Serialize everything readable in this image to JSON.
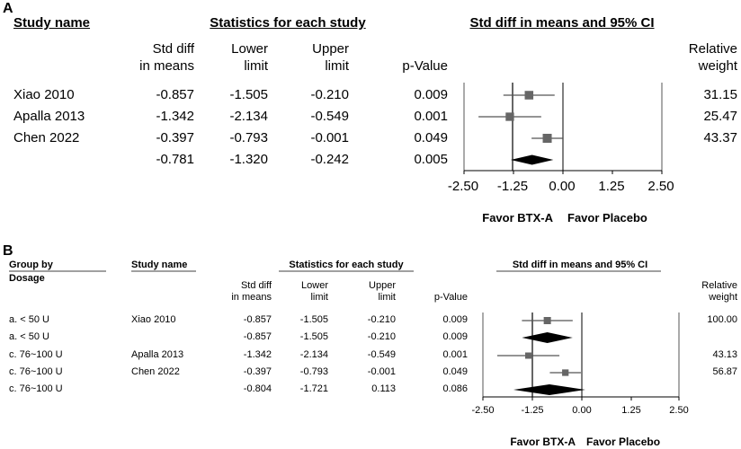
{
  "chart_data": [
    {
      "type": "forest",
      "panel": "A",
      "headers": {
        "study_name": "Study name",
        "stats_title": "Statistics for each study",
        "plot_title": "Std diff in means and 95% CI",
        "smd": [
          "Std diff",
          "in means"
        ],
        "lower": [
          "Lower",
          "limit"
        ],
        "upper": [
          "Upper",
          "limit"
        ],
        "p": "p-Value",
        "weight": [
          "Relative",
          "weight"
        ]
      },
      "rows": [
        {
          "study": "Xiao 2010",
          "smd": "-0.857",
          "lower": "-1.505",
          "upper": "-0.210",
          "p": "0.009",
          "weight": "31.15",
          "est": -0.857,
          "lo": -1.505,
          "hi": -0.21,
          "w": 31.15
        },
        {
          "study": "Apalla 2013",
          "smd": "-1.342",
          "lower": "-2.134",
          "upper": "-0.549",
          "p": "0.001",
          "weight": "25.47",
          "est": -1.342,
          "lo": -2.134,
          "hi": -0.549,
          "w": 25.47
        },
        {
          "study": "Chen 2022",
          "smd": "-0.397",
          "lower": "-0.793",
          "upper": "-0.001",
          "p": "0.049",
          "weight": "43.37",
          "est": -0.397,
          "lo": -0.793,
          "hi": -0.001,
          "w": 43.37
        }
      ],
      "summary": {
        "smd": "-0.781",
        "lower": "-1.320",
        "upper": "-0.242",
        "p": "0.005",
        "est": -0.781,
        "lo": -1.32,
        "hi": -0.242
      },
      "xlim": [
        -2.5,
        2.5
      ],
      "ticks": [
        "-2.50",
        "-1.25",
        "0.00",
        "1.25",
        "2.50"
      ],
      "tick_values": [
        -2.5,
        -1.25,
        0,
        1.25,
        2.5
      ],
      "favor_left": "Favor BTX-A",
      "favor_right": "Favor Placebo"
    },
    {
      "type": "forest",
      "panel": "B",
      "headers": {
        "group": [
          "Group by",
          "Dosage"
        ],
        "study_name": "Study name",
        "stats_title": "Statistics for each study",
        "plot_title": "Std diff in means and 95% CI",
        "smd": [
          "Std diff",
          "in means"
        ],
        "lower": [
          "Lower",
          "limit"
        ],
        "upper": [
          "Upper",
          "limit"
        ],
        "p": "p-Value",
        "weight": [
          "Relative",
          "weight"
        ]
      },
      "rows": [
        {
          "group": "a. < 50 U",
          "study": "Xiao 2010",
          "smd": "-0.857",
          "lower": "-1.505",
          "upper": "-0.210",
          "p": "0.009",
          "weight": "100.00",
          "kind": "study",
          "est": -0.857,
          "lo": -1.505,
          "hi": -0.21,
          "w": 100
        },
        {
          "group": "a. < 50 U",
          "study": "",
          "smd": "-0.857",
          "lower": "-1.505",
          "upper": "-0.210",
          "p": "0.009",
          "weight": "",
          "kind": "summary",
          "est": -0.857,
          "lo": -1.505,
          "hi": -0.21
        },
        {
          "group": "c. 76~100 U",
          "study": "Apalla 2013",
          "smd": "-1.342",
          "lower": "-2.134",
          "upper": "-0.549",
          "p": "0.001",
          "weight": "43.13",
          "kind": "study",
          "est": -1.342,
          "lo": -2.134,
          "hi": -0.549,
          "w": 43.13
        },
        {
          "group": "c. 76~100 U",
          "study": "Chen 2022",
          "smd": "-0.397",
          "lower": "-0.793",
          "upper": "-0.001",
          "p": "0.049",
          "weight": "56.87",
          "kind": "study",
          "est": -0.397,
          "lo": -0.793,
          "hi": -0.001,
          "w": 56.87
        },
        {
          "group": "c. 76~100 U",
          "study": "",
          "smd": "-0.804",
          "lower": "-1.721",
          "upper": "0.113",
          "p": "0.086",
          "weight": "",
          "kind": "summary",
          "est": -0.804,
          "lo": -1.721,
          "hi": 0.113
        }
      ],
      "xlim": [
        -2.5,
        2.5
      ],
      "ticks": [
        "-2.50",
        "-1.25",
        "0.00",
        "1.25",
        "2.50"
      ],
      "tick_values": [
        -2.5,
        -1.25,
        0,
        1.25,
        2.5
      ],
      "favor_left": "Favor BTX-A",
      "favor_right": "Favor Placebo"
    }
  ]
}
